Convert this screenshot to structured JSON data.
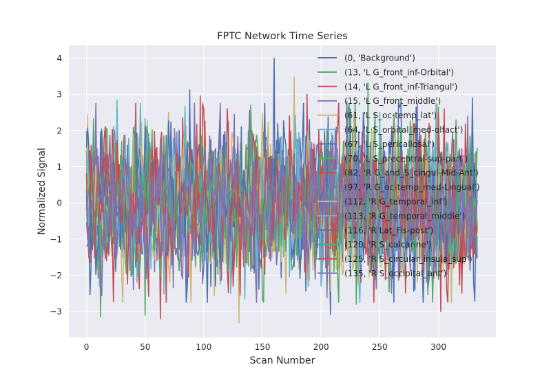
{
  "chart_data": {
    "type": "line",
    "title": "FPTC Network Time Series",
    "xlabel": "Scan Number",
    "ylabel": "Normalized Signal",
    "xlim": [
      -15,
      349
    ],
    "ylim": [
      -3.72,
      4.35
    ],
    "x_ticks": [
      0,
      50,
      100,
      150,
      200,
      250,
      300
    ],
    "y_ticks": [
      -3,
      -2,
      -1,
      0,
      1,
      2,
      3,
      4
    ],
    "grid": true,
    "legend_position": "top-right",
    "n_points": 334,
    "style": {
      "background": "#EAEAF2",
      "grid_color": "#FFFFFF"
    },
    "series": [
      {
        "name": "(0, 'Background')",
        "color": "#4C72B0",
        "seed": 11,
        "amplitude": 1.05,
        "peak": {
          "x": 160,
          "y": 4.0
        },
        "trough": {
          "x": 208,
          "y": -3.08
        }
      },
      {
        "name": "(13, 'L G_front_inf-Orbital')",
        "color": "#55A868",
        "seed": 23,
        "amplitude": 1.0,
        "peak": {
          "x": 240,
          "y": 3.32
        },
        "trough": {
          "x": 12,
          "y": -3.15
        }
      },
      {
        "name": "(14, 'L G_front_inf-Triangul')",
        "color": "#C44E52",
        "seed": 37,
        "amplitude": 1.0,
        "peak": {
          "x": 97,
          "y": 2.95
        },
        "trough": {
          "x": 63,
          "y": -3.2
        }
      },
      {
        "name": "(15, 'L G_front_middle')",
        "color": "#8172B2",
        "seed": 41,
        "amplitude": 0.95,
        "peak": {
          "x": 8,
          "y": 2.75
        },
        "trough": {
          "x": 85,
          "y": -2.6
        }
      },
      {
        "name": "(61, 'L S_oc-temp_lat')",
        "color": "#CCB974",
        "seed": 53,
        "amplitude": 0.95,
        "peak": {
          "x": 177,
          "y": 3.48
        },
        "trough": {
          "x": 130,
          "y": -3.32
        }
      },
      {
        "name": "(64, 'L S_orbital_med-olfact')",
        "color": "#64B5CD",
        "seed": 67,
        "amplitude": 0.95,
        "peak": {
          "x": 26,
          "y": 2.85
        },
        "trough": {
          "x": 135,
          "y": -2.65
        }
      },
      {
        "name": "(67, 'L S_pericallosal')",
        "color": "#4C72B0",
        "seed": 71,
        "amplitude": 0.9,
        "peak": {
          "x": 88,
          "y": 3.12
        },
        "trough": {
          "x": 280,
          "y": -2.4
        }
      },
      {
        "name": "(70, 'L S_precentral-sup-part')",
        "color": "#55A868",
        "seed": 83,
        "amplitude": 0.9,
        "peak": {
          "x": 300,
          "y": 2.65
        },
        "trough": {
          "x": 50,
          "y": -3.1
        }
      },
      {
        "name": "(82, 'R G_and_S_cingul-Mid-Ant')",
        "color": "#C44E52",
        "seed": 97,
        "amplitude": 0.9,
        "peak": {
          "x": 188,
          "y": 3.0
        },
        "trough": {
          "x": 302,
          "y": -3.0
        }
      },
      {
        "name": "(97, 'R G_oc-temp_med-Lingual')",
        "color": "#8172B2",
        "seed": 101,
        "amplitude": 0.9,
        "peak": {
          "x": 222,
          "y": 2.8
        },
        "trough": {
          "x": 40,
          "y": -2.4
        }
      },
      {
        "name": "(112, 'R G_temporal_inf')",
        "color": "#CCB974",
        "seed": 113,
        "amplitude": 0.9,
        "peak": {
          "x": 70,
          "y": 2.5
        },
        "trough": {
          "x": 170,
          "y": -2.5
        }
      },
      {
        "name": "(113, 'R G_temporal_middle')",
        "color": "#64B5CD",
        "seed": 127,
        "amplitude": 0.85,
        "peak": {
          "x": 250,
          "y": 2.5
        },
        "trough": {
          "x": 200,
          "y": -2.3
        }
      },
      {
        "name": "(116, 'R Lat_Fis-post')",
        "color": "#4C72B0",
        "seed": 131,
        "amplitude": 0.85,
        "peak": {
          "x": 329,
          "y": 2.9
        },
        "trough": {
          "x": 110,
          "y": -2.3
        }
      },
      {
        "name": "(120, 'R S_calcarine')",
        "color": "#55A868",
        "seed": 139,
        "amplitude": 0.85,
        "peak": {
          "x": 140,
          "y": 2.7
        },
        "trough": {
          "x": 230,
          "y": -2.8
        }
      },
      {
        "name": "(125, 'R S_circular_insula_sup')",
        "color": "#C44E52",
        "seed": 151,
        "amplitude": 0.85,
        "peak": {
          "x": 120,
          "y": 2.6
        },
        "trough": {
          "x": 320,
          "y": -2.5
        }
      },
      {
        "name": "(135, 'R S_occipital_ant')",
        "color": "#8172B2",
        "seed": 163,
        "amplitude": 0.85,
        "peak": {
          "x": 325,
          "y": 2.4
        },
        "trough": {
          "x": 290,
          "y": -2.2
        }
      }
    ]
  }
}
